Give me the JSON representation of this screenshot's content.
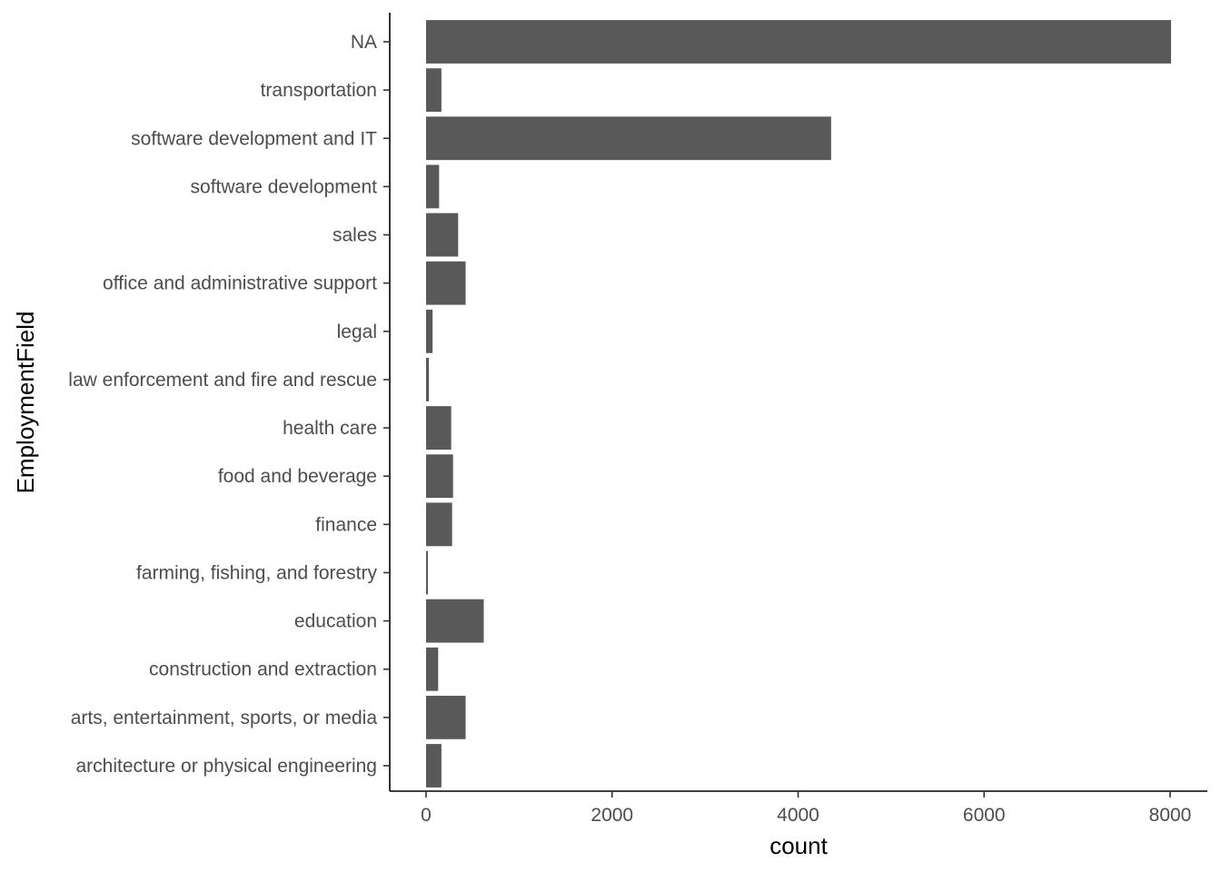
{
  "chart_data": {
    "type": "bar",
    "orientation": "horizontal",
    "xlabel": "count",
    "ylabel": "EmploymentField",
    "xlim": [
      0,
      8000
    ],
    "xticks": [
      0,
      2000,
      4000,
      6000,
      8000
    ],
    "xtick_labels": [
      "0",
      "2000",
      "4000",
      "6000",
      "8000"
    ],
    "categories": [
      "architecture or physical engineering",
      "arts, entertainment, sports, or media",
      "construction and extraction",
      "education",
      "farming, fishing, and forestry",
      "finance",
      "food and beverage",
      "health care",
      "law enforcement and fire and rescue",
      "legal",
      "office and administrative support",
      "sales",
      "software development",
      "software development and IT",
      "transportation",
      "NA"
    ],
    "values": [
      165,
      425,
      130,
      620,
      20,
      280,
      290,
      270,
      30,
      70,
      425,
      345,
      140,
      4355,
      165,
      8010
    ],
    "bar_color": "#595959",
    "grid": false,
    "legend": "none"
  }
}
